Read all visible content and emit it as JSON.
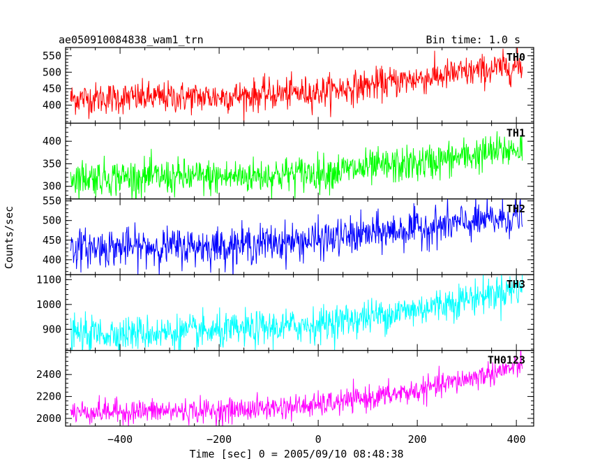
{
  "chart_data": {
    "type": "line",
    "title": "ae050910084838_wam1_trn",
    "subtitle": "Bin time: 1.0 s",
    "xlabel": "Time [sec] 0 = 2005/09/10 08:48:38",
    "ylabel": "Counts/sec",
    "xlim": [
      -510,
      435
    ],
    "xticks": [
      -400,
      -200,
      0,
      200,
      400
    ],
    "x_major_tick_labels": [
      "−400",
      "−200",
      "0",
      "200",
      "400"
    ],
    "x_range_data": [
      -500,
      412
    ],
    "grid": false,
    "panels": [
      {
        "name": "TH0",
        "color": "#ff0000",
        "ylim": [
          345,
          575
        ],
        "yticks": [
          400,
          450,
          500,
          550
        ],
        "ytick_labels": [
          "400",
          "450",
          "500",
          "550"
        ],
        "trend": [
          [
            -500,
            420
          ],
          [
            -200,
            425
          ],
          [
            0,
            440
          ],
          [
            200,
            480
          ],
          [
            412,
            520
          ]
        ],
        "noise_sd": 24
      },
      {
        "name": "TH1",
        "color": "#00ff00",
        "ylim": [
          272,
          440
        ],
        "yticks": [
          300,
          350,
          400
        ],
        "ytick_labels": [
          "300",
          "350",
          "400"
        ],
        "trend": [
          [
            -500,
            320
          ],
          [
            -200,
            320
          ],
          [
            0,
            330
          ],
          [
            200,
            350
          ],
          [
            412,
            385
          ]
        ],
        "noise_sd": 20
      },
      {
        "name": "TH2",
        "color": "#0000ff",
        "ylim": [
          362,
          555
        ],
        "yticks": [
          400,
          450,
          500,
          550
        ],
        "ytick_labels": [
          "400",
          "450",
          "500",
          "550"
        ],
        "trend": [
          [
            -500,
            430
          ],
          [
            -200,
            435
          ],
          [
            0,
            450
          ],
          [
            200,
            480
          ],
          [
            412,
            510
          ]
        ],
        "noise_sd": 24
      },
      {
        "name": "TH3",
        "color": "#00ffff",
        "ylim": [
          815,
          1120
        ],
        "yticks": [
          900,
          1000,
          1100
        ],
        "ytick_labels": [
          "900",
          "1000",
          "1100"
        ],
        "trend": [
          [
            -500,
            880
          ],
          [
            -200,
            890
          ],
          [
            0,
            920
          ],
          [
            200,
            980
          ],
          [
            412,
            1070
          ]
        ],
        "noise_sd": 35
      },
      {
        "name": "TH0123",
        "color": "#ff00ff",
        "ylim": [
          1930,
          2620
        ],
        "yticks": [
          2000,
          2200,
          2400
        ],
        "ytick_labels": [
          "2000",
          "2200",
          "2400"
        ],
        "trend": [
          [
            -500,
            2060
          ],
          [
            -200,
            2070
          ],
          [
            0,
            2120
          ],
          [
            200,
            2250
          ],
          [
            412,
            2480
          ]
        ],
        "noise_sd": 55
      }
    ]
  }
}
